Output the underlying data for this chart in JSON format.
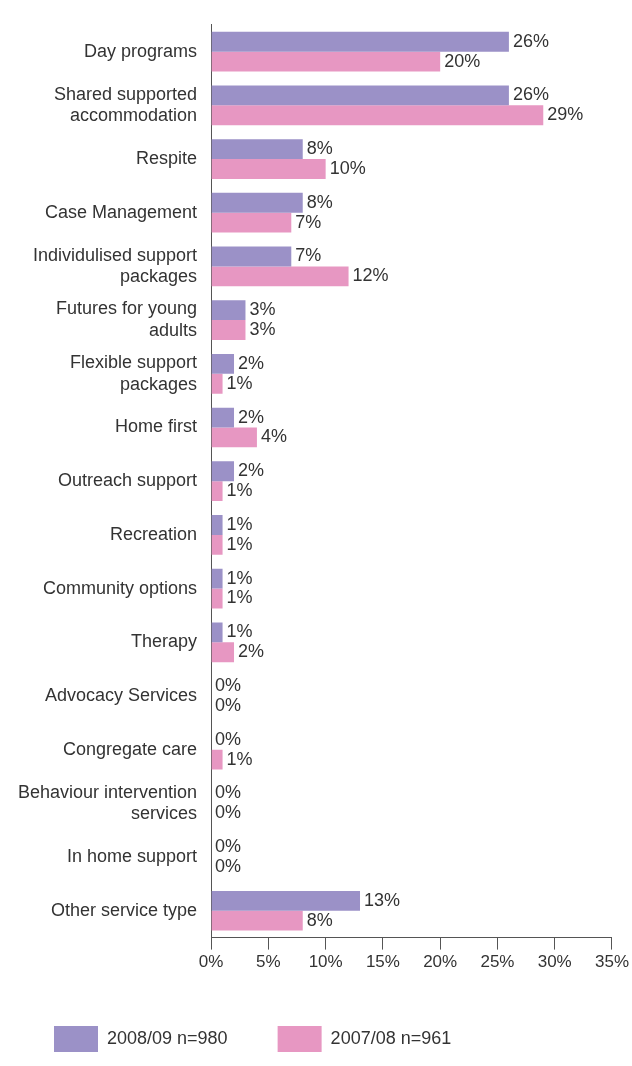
{
  "chart_data": {
    "type": "bar",
    "orientation": "horizontal",
    "categories": [
      "Day programs",
      "Shared supported accommodation",
      "Respite",
      "Case Management",
      "Individulised support packages",
      "Futures for young adults",
      "Flexible support packages",
      "Home first",
      "Outreach support",
      "Recreation",
      "Community options",
      "Therapy",
      "Advocacy Services",
      "Congregate care",
      "Behaviour intervention services",
      "In home support",
      "Other service type"
    ],
    "series": [
      {
        "name": "2008/09 n=980",
        "color": "#9b91c7",
        "values": [
          26,
          26,
          8,
          8,
          7,
          3,
          2,
          2,
          2,
          1,
          1,
          1,
          0,
          0,
          0,
          0,
          13
        ],
        "value_labels": [
          "26%",
          "26%",
          "8%",
          "8%",
          "7%",
          "3%",
          "2%",
          "2%",
          "2%",
          "1%",
          "1%",
          "1%",
          "0%",
          "0%",
          "0%",
          "0%",
          "13%"
        ]
      },
      {
        "name": "2007/08 n=961",
        "color": "#e797c2",
        "values": [
          20,
          29,
          10,
          7,
          12,
          3,
          1,
          4,
          1,
          1,
          1,
          2,
          0,
          1,
          0,
          0,
          8
        ],
        "value_labels": [
          "20%",
          "29%",
          "10%",
          "7%",
          "12%",
          "3%",
          "1%",
          "4%",
          "1%",
          "1%",
          "1%",
          "2%",
          "0%",
          "1%",
          "0%",
          "0%",
          "8%"
        ]
      }
    ],
    "xlim": [
      0,
      35
    ],
    "xticks": [
      {
        "value": 0,
        "label": "0%"
      },
      {
        "value": 5,
        "label": "5%"
      },
      {
        "value": 10,
        "label": "10%"
      },
      {
        "value": 15,
        "label": "15%"
      },
      {
        "value": 20,
        "label": "20%"
      },
      {
        "value": 25,
        "label": "25%"
      },
      {
        "value": 30,
        "label": "30%"
      },
      {
        "value": 35,
        "label": "35%"
      }
    ],
    "legend": "bottom"
  }
}
